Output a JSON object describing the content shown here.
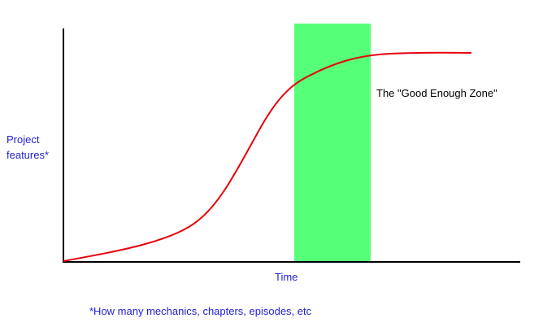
{
  "chart": {
    "zone_label": "The \"Good Enough Zone\"",
    "y_label_line1": "Project",
    "y_label_line2": "features*",
    "x_label": "Time",
    "footnote": "*How many mechanics, chapters, episodes, etc"
  },
  "colors": {
    "axis": "#000000",
    "curve": "#e8000b",
    "zone": "#55ff77",
    "labels": "#1f1fd6",
    "zone_text": "#000000"
  }
}
